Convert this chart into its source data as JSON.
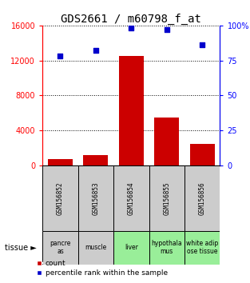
{
  "title": "GDS2661 / m60798_f_at",
  "samples": [
    "GSM156852",
    "GSM156853",
    "GSM156854",
    "GSM156855",
    "GSM156856"
  ],
  "tissues": [
    "pancre\nas",
    "muscle",
    "liver",
    "hypothala\nmus",
    "white adip\nose tissue"
  ],
  "tissue_colors": [
    "#cccccc",
    "#cccccc",
    "#99ee99",
    "#99ee99",
    "#99ee99"
  ],
  "gsm_row_color": "#cccccc",
  "counts": [
    700,
    1200,
    12500,
    5500,
    2500
  ],
  "percentiles": [
    78,
    82,
    98,
    97,
    86
  ],
  "bar_color": "#cc0000",
  "dot_color": "#0000cc",
  "left_yticks": [
    0,
    4000,
    8000,
    12000,
    16000
  ],
  "right_yticks": [
    0,
    25,
    50,
    75,
    100
  ],
  "right_ylabel": "100%",
  "ylim_left": [
    0,
    16000
  ],
  "ylim_right": [
    0,
    100
  ],
  "legend_count_label": "count",
  "legend_pct_label": "percentile rank within the sample",
  "tissue_label": "tissue ►",
  "background_color": "#ffffff"
}
